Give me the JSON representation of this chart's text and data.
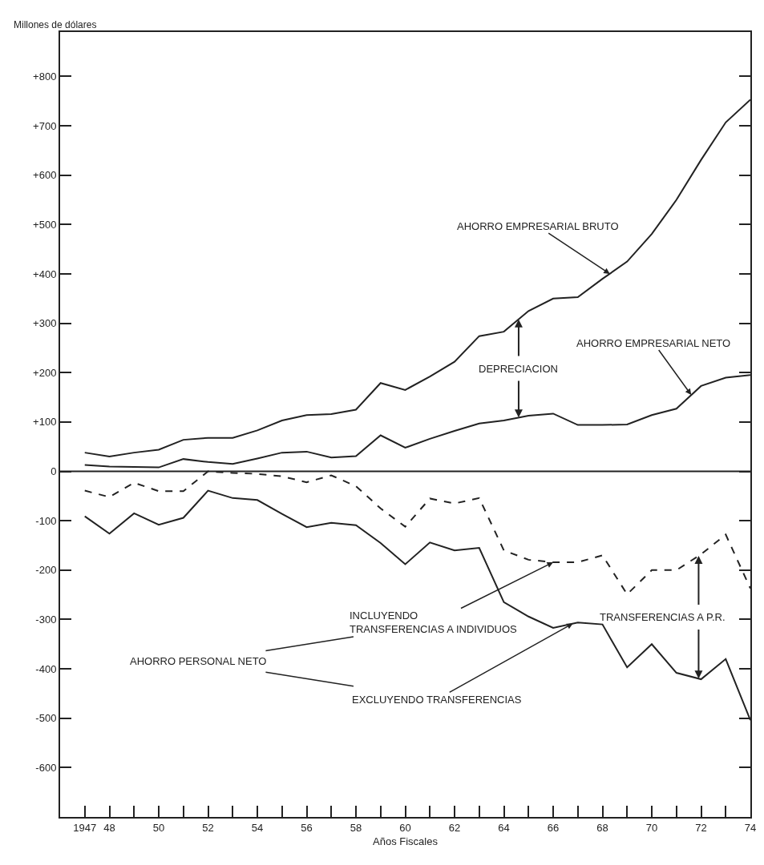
{
  "chart_data": {
    "type": "line",
    "ylabel": "Millones de dólares",
    "xlabel": "Años Fiscales",
    "x": [
      1947,
      1948,
      1949,
      1950,
      1951,
      1952,
      1953,
      1954,
      1955,
      1956,
      1957,
      1958,
      1959,
      1960,
      1961,
      1962,
      1963,
      1964,
      1965,
      1966,
      1967,
      1968,
      1969,
      1970,
      1971,
      1972,
      1973,
      1974
    ],
    "series": [
      {
        "color": "#222222",
        "line_style": "solid",
        "values": [
          38,
          30,
          38,
          44,
          64,
          68,
          68,
          83,
          103,
          114,
          116,
          125,
          179,
          165,
          192,
          222,
          274,
          283,
          325,
          350,
          353,
          390,
          425,
          481,
          550,
          631,
          707,
          753
        ]
      },
      {
        "color": "#222222",
        "line_style": "solid",
        "values": [
          13,
          10,
          9,
          8,
          25,
          19,
          15,
          26,
          38,
          40,
          28,
          31,
          73,
          48,
          66,
          82,
          97,
          103,
          113,
          117,
          94,
          94,
          95,
          114,
          127,
          173,
          190,
          195
        ]
      },
      {
        "color": "#222222",
        "line_style": "dashed",
        "values": [
          -39,
          -52,
          -23,
          -40,
          -40,
          0,
          -3,
          -5,
          -10,
          -22,
          -8,
          -30,
          -75,
          -112,
          -55,
          -65,
          -54,
          -160,
          -179,
          -184,
          -184,
          -170,
          -249,
          -200,
          -200,
          -168,
          -128,
          -237
        ]
      },
      {
        "color": "#222222",
        "line_style": "solid",
        "values": [
          -91,
          -126,
          -85,
          -108,
          -94,
          -39,
          -54,
          -58,
          -86,
          -113,
          -104,
          -109,
          -145,
          -188,
          -144,
          -160,
          -155,
          -265,
          -294,
          -317,
          -306,
          -310,
          -397,
          -350,
          -408,
          -421,
          -380,
          -504
        ]
      }
    ],
    "xlim": [
      1946,
      1974
    ],
    "xticks": [
      {
        "value": 1947,
        "label": "1947"
      },
      {
        "value": 1948,
        "label": "48"
      },
      {
        "value": 1949,
        "label": null
      },
      {
        "value": 1950,
        "label": "50"
      },
      {
        "value": 1951,
        "label": null
      },
      {
        "value": 1952,
        "label": "52"
      },
      {
        "value": 1953,
        "label": null
      },
      {
        "value": 1954,
        "label": "54"
      },
      {
        "value": 1955,
        "label": null
      },
      {
        "value": 1956,
        "label": "56"
      },
      {
        "value": 1957,
        "label": null
      },
      {
        "value": 1958,
        "label": "58"
      },
      {
        "value": 1959,
        "label": null
      },
      {
        "value": 1960,
        "label": "60"
      },
      {
        "value": 1961,
        "label": null
      },
      {
        "value": 1962,
        "label": "62"
      },
      {
        "value": 1963,
        "label": null
      },
      {
        "value": 1964,
        "label": "64"
      },
      {
        "value": 1965,
        "label": null
      },
      {
        "value": 1966,
        "label": "66"
      },
      {
        "value": 1967,
        "label": null
      },
      {
        "value": 1968,
        "label": "68"
      },
      {
        "value": 1969,
        "label": null
      },
      {
        "value": 1970,
        "label": "70"
      },
      {
        "value": 1971,
        "label": null
      },
      {
        "value": 1972,
        "label": "72"
      },
      {
        "value": 1973,
        "label": null
      },
      {
        "value": 1974,
        "label": "74"
      }
    ],
    "ylim": [
      -700,
      890
    ],
    "yticks": [
      {
        "value": 800,
        "label": "+800"
      },
      {
        "value": 700,
        "label": "+700"
      },
      {
        "value": 600,
        "label": "+600"
      },
      {
        "value": 500,
        "label": "+500"
      },
      {
        "value": 400,
        "label": "+400"
      },
      {
        "value": 300,
        "label": "+300"
      },
      {
        "value": 200,
        "label": "+200"
      },
      {
        "value": 100,
        "label": "+100"
      },
      0,
      -100,
      -200,
      -300,
      -400,
      -500,
      -600
    ],
    "ref_lines": [
      {
        "axis": "y",
        "value": 0,
        "color": "#222222"
      }
    ],
    "marker": "none",
    "annotations": [
      {
        "text": "AHORRO EMPRESARIAL BRUTO",
        "x": 1968.3,
        "y": 400
      },
      {
        "text": "AHORRO EMPRESARIAL NETO",
        "x": 1971.6,
        "y": 155
      },
      {
        "text": "DEPRECIACION",
        "x": 1964.6,
        "y": 308
      },
      {
        "text": "TRANSFERENCIAS A P.R.",
        "x": 1971.9,
        "y": -171
      },
      "AHORRO PERSONAL NETO",
      {
        "text": "INCLUYENDO\nTRANSFERENCIAS A INDIVIDUOS",
        "x": 1966,
        "y": -184
      },
      {
        "text": "EXCLUYENDO TRANSFERENCIAS",
        "x": 1966.8,
        "y": -308
      }
    ]
  }
}
